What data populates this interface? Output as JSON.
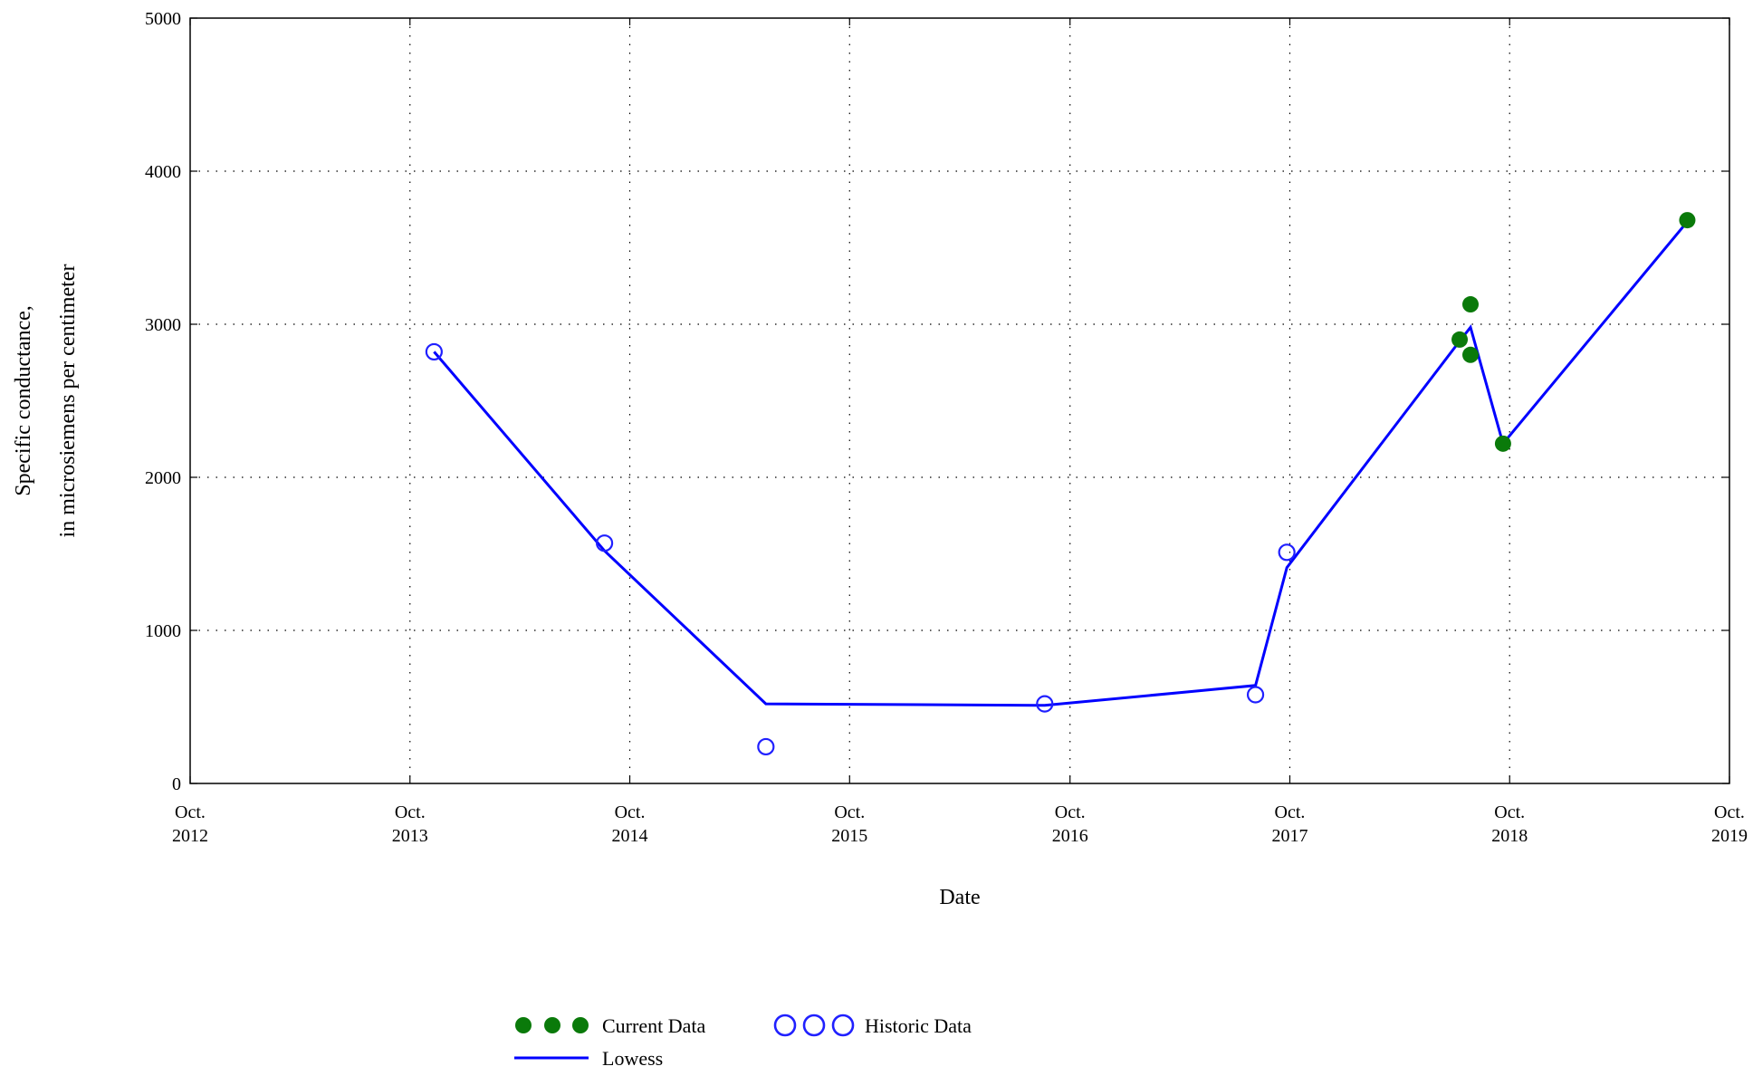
{
  "chart_data": {
    "type": "scatter",
    "xlabel": "Date",
    "ylabel_lines": [
      "Specific conductance,",
      "in microsiemens per centimeter"
    ],
    "xlim": [
      "2012-10-01",
      "2019-10-01"
    ],
    "ylim": [
      0,
      5000
    ],
    "yticks": [
      0,
      1000,
      2000,
      3000,
      4000,
      5000
    ],
    "xticks": [
      {
        "date": "2012-10-01",
        "line1": "Oct.",
        "line2": "2012"
      },
      {
        "date": "2013-10-01",
        "line1": "Oct.",
        "line2": "2013"
      },
      {
        "date": "2014-10-01",
        "line1": "Oct.",
        "line2": "2014"
      },
      {
        "date": "2015-10-01",
        "line1": "Oct.",
        "line2": "2015"
      },
      {
        "date": "2016-10-01",
        "line1": "Oct.",
        "line2": "2016"
      },
      {
        "date": "2017-10-01",
        "line1": "Oct.",
        "line2": "2017"
      },
      {
        "date": "2018-10-01",
        "line1": "Oct.",
        "line2": "2018"
      },
      {
        "date": "2019-10-01",
        "line1": "Oct.",
        "line2": "2019"
      }
    ],
    "grid": true,
    "legend_position": "bottom-center",
    "series": [
      {
        "name": "Current Data",
        "kind": "filled-markers",
        "color": "#0a7a0a",
        "points": [
          {
            "x": "2018-07-10",
            "y": 2900
          },
          {
            "x": "2018-07-28",
            "y": 3130
          },
          {
            "x": "2018-07-28",
            "y": 2800
          },
          {
            "x": "2018-09-20",
            "y": 2220
          },
          {
            "x": "2019-07-23",
            "y": 3680
          }
        ]
      },
      {
        "name": "Historic Data",
        "kind": "open-markers",
        "color": "#2020ff",
        "points": [
          {
            "x": "2013-11-10",
            "y": 2820
          },
          {
            "x": "2014-08-20",
            "y": 1570
          },
          {
            "x": "2015-05-15",
            "y": 240
          },
          {
            "x": "2016-08-20",
            "y": 520
          },
          {
            "x": "2017-08-05",
            "y": 580
          },
          {
            "x": "2017-09-26",
            "y": 1510
          }
        ]
      },
      {
        "name": "Lowess",
        "kind": "line",
        "color": "#0000ff",
        "points": [
          {
            "x": "2013-11-10",
            "y": 2820
          },
          {
            "x": "2014-08-20",
            "y": 1520
          },
          {
            "x": "2015-05-15",
            "y": 520
          },
          {
            "x": "2016-08-20",
            "y": 510
          },
          {
            "x": "2017-08-05",
            "y": 640
          },
          {
            "x": "2017-09-26",
            "y": 1410
          },
          {
            "x": "2018-07-10",
            "y": 2890
          },
          {
            "x": "2018-07-28",
            "y": 2980
          },
          {
            "x": "2018-09-20",
            "y": 2220
          },
          {
            "x": "2019-07-23",
            "y": 3670
          }
        ]
      }
    ],
    "legend": {
      "current_label": "Current Data",
      "historic_label": "Historic Data",
      "lowess_label": "Lowess"
    }
  }
}
